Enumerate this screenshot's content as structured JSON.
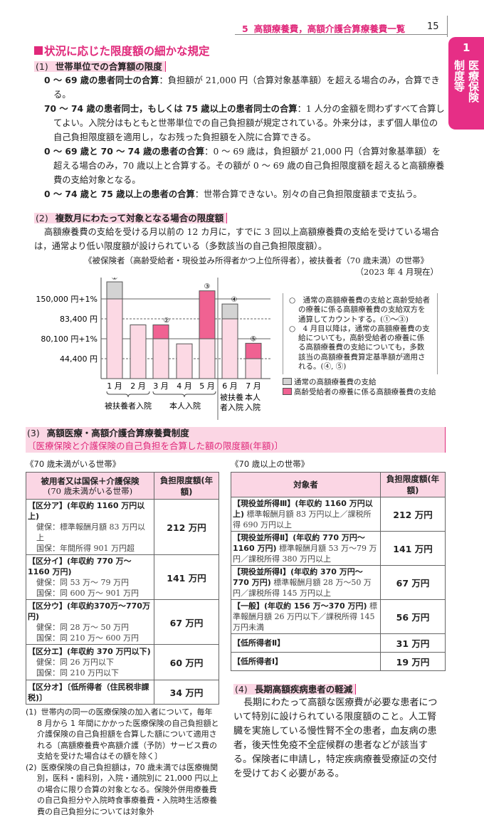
{
  "header": {
    "chapter": "5",
    "title": "高額療養費，高額介護合算療養費一覧",
    "page": "15"
  },
  "side_tab": {
    "number": "1",
    "lines": [
      "医療保険",
      "制度等"
    ],
    "color": "#e62e86"
  },
  "section_title": "状況に応じた限度額の細かな規定",
  "s1": {
    "num": "(1)",
    "title": "世帯単位での合算額の限度",
    "items": [
      {
        "term": "0 ～ 69 歳の患者同士の合算",
        "text": "：負担額が 21,000 円（合算対象基準額）を超える場合のみ，合算できる。"
      },
      {
        "term": "70 ～ 74 歳の患者同士，もしくは 75 歳以上の患者同士の合算",
        "text": "：1 人分の金額を問わずすべて合算してよい。入院分はもともと世帯単位での自己負担額が規定されている。外来分は，まず個人単位の自己負担限度額を適用し，なお残った負担額を入院に合算できる。"
      },
      {
        "term": "0 ～ 69 歳と 70 ～ 74 歳の患者の合算",
        "text": "：0 ～ 69 歳は，負担額が 21,000 円（合算対象基準額）を超える場合のみ，70 歳以上と合算する。その額が 0 ～ 69 歳の自己負担限度額を超えると高額療養費の支給対象となる。"
      },
      {
        "term": "0 ～ 74 歳と 75 歳以上の患者の合算",
        "text": "：世帯合算できない。別々の自己負担限度額まで支払う。"
      }
    ]
  },
  "s2": {
    "num": "(2)",
    "title": "複数月にわたって対象となる場合の限度額",
    "text": "高額療養費の支給を受ける月以前の 12 カ月に，すでに 3 回以上高額療養費の支給を受けている場合は，通常より低い限度額が設けられている（多数該当の自己負担限度額）。",
    "figure_caption": "《被保険者（高齢受給者・現役並み所得者かつ上位所得者），被扶養者（70 歳未満）の世帯》",
    "figure_date": "（2023 年 4 月現在）"
  },
  "chart_data": {
    "type": "bar",
    "stacked": true,
    "levels": [
      {
        "label": "44,400 円",
        "value": 44400,
        "style": "dashed"
      },
      {
        "label": "80,100 円+1%",
        "value": 80100,
        "style": "solid"
      },
      {
        "label": "83,400 円",
        "value": 83400,
        "style": "dashed"
      },
      {
        "label": "150,000 円+1%",
        "value": 150000,
        "style": "solid"
      }
    ],
    "categories": [
      "1 月",
      "2 月",
      "3 月",
      "4 月",
      "5 月",
      "6 月",
      "7 月"
    ],
    "bar_markers": [
      "①",
      "",
      "②",
      "",
      "③",
      "④",
      "⑤"
    ],
    "groups": [
      "被扶養者入院",
      "本人入院",
      "被扶養\n者入院",
      "本人\n入院"
    ],
    "series": [
      {
        "name": "通常の高額療養費の支給",
        "color": "#d3d3d3"
      },
      {
        "name": "高齢受給者の療養に係る高額療養費の支給",
        "color": "#f06292"
      }
    ],
    "bars": [
      {
        "base": 150000,
        "top": 207000,
        "top_series": 0
      },
      {
        "base": 82400,
        "top": 82400,
        "top_series": null
      },
      {
        "base": 80100,
        "top": 82400,
        "top_series": 1
      },
      {
        "base": 71000,
        "top": 71000,
        "top_series": null
      },
      {
        "base": 80100,
        "top": 177000,
        "top_series": 1
      },
      {
        "base": 83400,
        "top": 133000,
        "top_series": 0
      },
      {
        "base": 44400,
        "top": 72000,
        "top_series": 1
      }
    ],
    "base_color": "#fcd9e4"
  },
  "chart_notes": [
    "○　通常の高額療養費の支給と高齢受給者の療養に係る高額療養費の支給双方を通算してカウントする。(①～③)",
    "○　4 月目以降は，通常の高額療養費の支給についても，高齢受給者の療養に係る高額療養費の支給についても，多数該当の高額療養費算定基準額が適用される。(④, ⑤)"
  ],
  "s3": {
    "num": "(3)",
    "title": "高額医療・高額介護合算療養費制度",
    "subtitle": "〔医療保険と介護保険の自己負担を合算した額の限度額(年額)〕"
  },
  "table_under70": {
    "caption": "《70 歳未満がいる世帯》",
    "headers": [
      "被用者又は国保＋介護保険",
      "(70 歳未満がいる世帯)",
      "負担限度額(年額)"
    ],
    "rows": [
      {
        "title": "【区分ア】(年収約 1160 万円以上)",
        "details": [
          "健保：標準報酬月額 83 万円以上",
          "国保：年間所得 901 万円超"
        ],
        "amount": "212 万円"
      },
      {
        "title": "【区分イ】(年収約 770 万～1160 万円)",
        "details": [
          "健保：同 53 万～ 79 万円",
          "国保：同 600 万～ 901 万円"
        ],
        "amount": "141 万円"
      },
      {
        "title": "【区分ウ】(年収約370万～770万円)",
        "details": [
          "健保：同 28 万～ 50 万円",
          "国保：同 210 万～ 600 万円"
        ],
        "amount": "67 万円"
      },
      {
        "title": "【区分エ】(年収約 370 万円以下)",
        "details": [
          "健保：同 26 万円以下",
          "国保：同 210 万円以下"
        ],
        "amount": "60 万円"
      },
      {
        "title": "【区分オ】〔低所得者（住民税非課税)〕",
        "details": [],
        "amount": "34 万円"
      }
    ]
  },
  "table_over70": {
    "caption": "《70 歳以上の世帯》",
    "headers": [
      "対象者",
      "負担限度額(年額)"
    ],
    "rows": [
      {
        "title": "【現役並所得Ⅲ】(年収約 1160 万円以上)",
        "details": "標準報酬月額 83 万円以上／課税所得 690 万円以上",
        "amount": "212 万円"
      },
      {
        "title": "【現役並所得Ⅱ】(年収約 770 万円～1160 万円)",
        "details": "標準報酬月額 53 万～79 万円／課税所得 380 万円以上",
        "amount": "141 万円"
      },
      {
        "title": "【現役並所得Ⅰ】(年収約 370 万円～770 万円)",
        "details": "標準報酬月額 28 万～50 万円／課税所得 145 万円以上",
        "amount": "67 万円"
      },
      {
        "title": "【一般】(年収約 156 万～370 万円)",
        "details": "標準報酬月額 26 万円以下／課税所得 145 万円未満",
        "amount": "56 万円"
      },
      {
        "title": "【低所得者Ⅱ】",
        "details": "",
        "amount": "31 万円"
      },
      {
        "title": "【低所得者Ⅰ】",
        "details": "",
        "amount": "19 万円"
      }
    ]
  },
  "notes": [
    {
      "num": "(1)",
      "text": "世帯内の同一の医療保険の加入者について，毎年 8 月から 1 年間にかかった医療保険の自己負担額と介護保険の自己負担額を合算した額について適用される〔高額療養費や高額介護（予防）サービス費の支給を受けた場合はその額を除く〕"
    },
    {
      "num": "(2)",
      "text": "医療保険の自己負担額は，70 歳未満では医療機関別，医科・歯科別，入院・通院別に 21,000 円以上の場合に限り合算の対象となる。保険外併用療養費の自己負担分や入院時食事療養費・入院時生活療養費の自己負担分については対象外"
    }
  ],
  "s4": {
    "num": "(4)",
    "title": "長期高額疾病患者の軽減",
    "text": "長期にわたって高額な医療費が必要な患者について特別に設けられている限度額のこと。人工腎臓を実施している慢性腎不全の患者，血友病の患者，後天性免疫不全症候群の患者などが該当する。保険者に申請し，特定疾病療養受療証の交付を受けておく必要がある。"
  }
}
